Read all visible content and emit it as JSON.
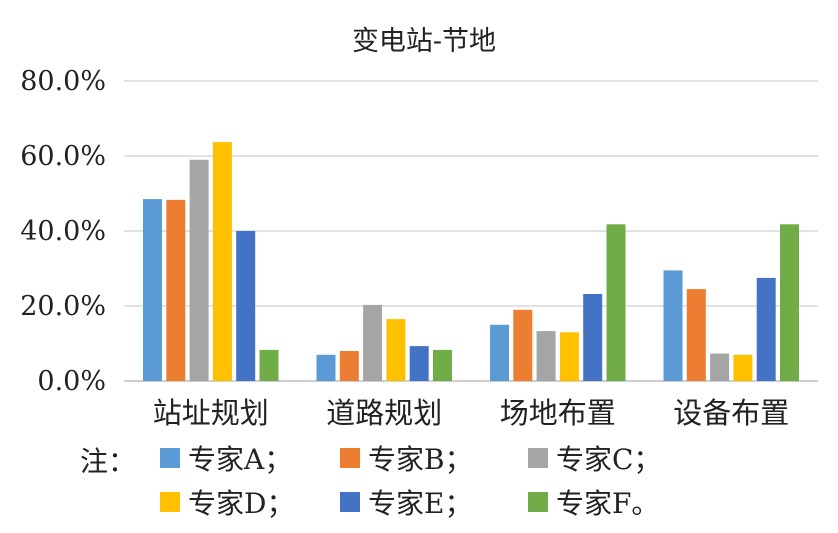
{
  "chart_data": {
    "type": "bar",
    "title": "变电站-节地",
    "categories": [
      "站址规划",
      "道路规划",
      "场地布置",
      "设备布置"
    ],
    "yticks": [
      "0.0%",
      "20.0%",
      "40.0%",
      "60.0%",
      "80.0%"
    ],
    "ylim": [
      0,
      80
    ],
    "grid": true,
    "series": [
      {
        "name": "专家A",
        "color": "#5B9BD5",
        "values": [
          48.5,
          7.0,
          15.0,
          29.5
        ]
      },
      {
        "name": "专家B",
        "color": "#ED7D31",
        "values": [
          48.3,
          8.0,
          19.0,
          24.5
        ]
      },
      {
        "name": "专家C",
        "color": "#A5A5A5",
        "values": [
          59.0,
          20.3,
          13.3,
          7.3
        ]
      },
      {
        "name": "专家D",
        "color": "#FFC000",
        "values": [
          63.7,
          16.5,
          13.0,
          7.0
        ]
      },
      {
        "name": "专家E",
        "color": "#4472C4",
        "values": [
          40.0,
          9.3,
          23.2,
          27.5
        ]
      },
      {
        "name": "专家F",
        "color": "#70AD47",
        "values": [
          8.3,
          8.3,
          41.8,
          41.8
        ]
      }
    ]
  },
  "legend": {
    "note": "注：",
    "items": [
      "专家A；",
      "专家B；",
      "专家C；",
      "专家D；",
      "专家E；",
      "专家F。"
    ]
  }
}
